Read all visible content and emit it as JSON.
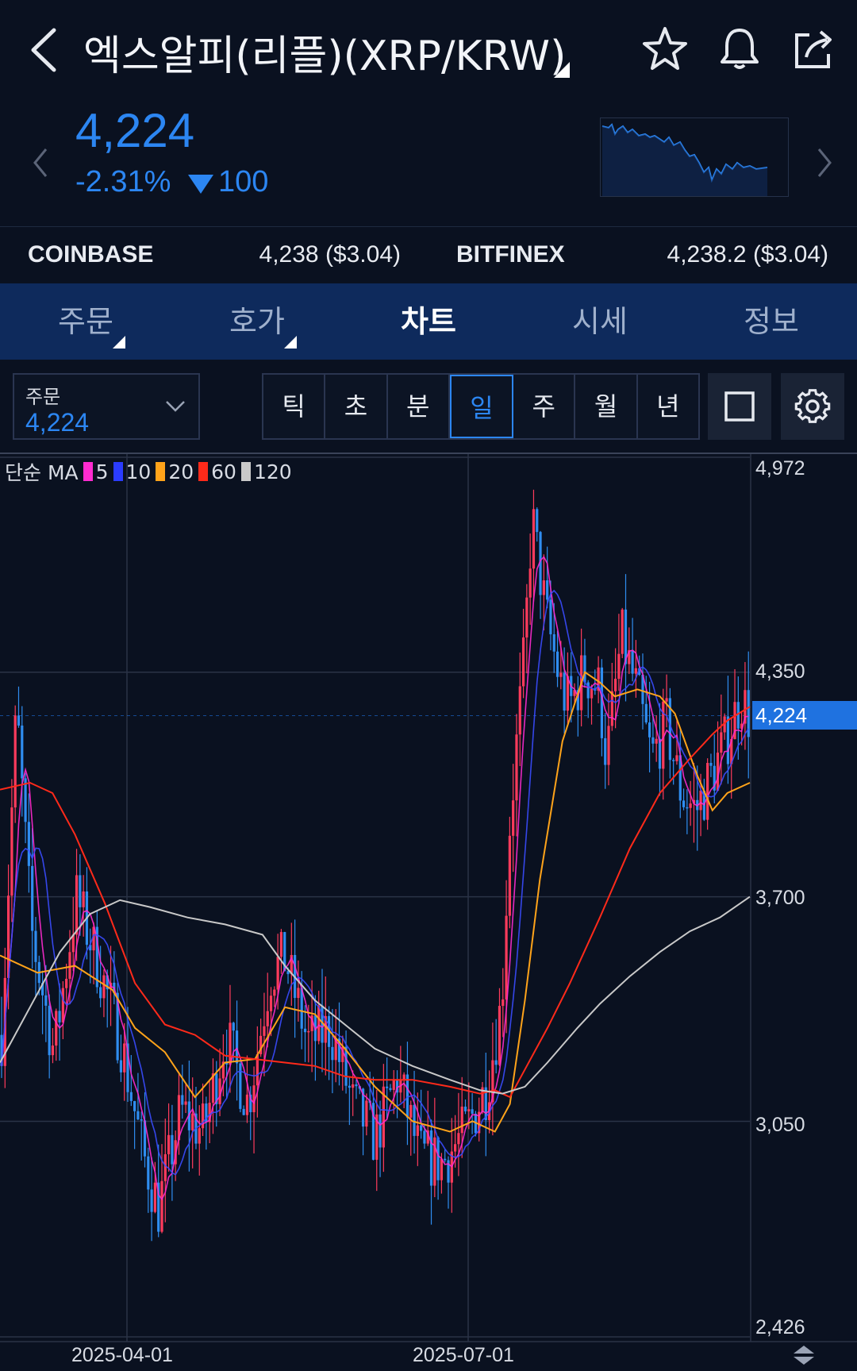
{
  "header": {
    "title": "엑스알피(리플)(XRP/KRW)"
  },
  "summary": {
    "price": "4,224",
    "change_pct": "-2.31%",
    "change_abs": "100",
    "color_down": "#2c86f2"
  },
  "exchanges": [
    {
      "name": "COINBASE",
      "value": "4,238 ($3.04)"
    },
    {
      "name": "BITFINEX",
      "value": "4,238.2 ($3.04)"
    }
  ],
  "tabs": [
    {
      "label": "주문",
      "has_caret": true
    },
    {
      "label": "호가",
      "has_caret": true
    },
    {
      "label": "차트",
      "active": true
    },
    {
      "label": "시세"
    },
    {
      "label": "정보"
    }
  ],
  "toolbar": {
    "order_label": "주문",
    "order_value": "4,224",
    "periods": [
      "틱",
      "초",
      "분",
      "일",
      "주",
      "월",
      "년"
    ],
    "active_period": "일"
  },
  "chart_data": {
    "type": "candlestick",
    "ma_label": "단순 MA",
    "ma_series": [
      {
        "name": "5",
        "color": "#ff2bd0"
      },
      {
        "name": "10",
        "color": "#2b3cff"
      },
      {
        "name": "20",
        "color": "#ffa31a"
      },
      {
        "name": "60",
        "color": "#ff2a1a"
      },
      {
        "name": "120",
        "color": "#c9c9c9"
      }
    ],
    "y_ticks": [
      "4,972",
      "4,350",
      "3,700",
      "3,050",
      "2,426"
    ],
    "y_tick_values": [
      4972,
      4350,
      3700,
      3050,
      2426
    ],
    "ylim": [
      2426,
      4972
    ],
    "current_price_label": "4,224",
    "current_price": 4224,
    "x_ticks": [
      "2025-04-01",
      "2025-07-01"
    ],
    "ma_curves": {
      "ma20": [
        [
          0,
          3530
        ],
        [
          0.05,
          3480
        ],
        [
          0.1,
          3500
        ],
        [
          0.15,
          3430
        ],
        [
          0.18,
          3320
        ],
        [
          0.22,
          3250
        ],
        [
          0.26,
          3120
        ],
        [
          0.3,
          3220
        ],
        [
          0.34,
          3230
        ],
        [
          0.38,
          3380
        ],
        [
          0.42,
          3360
        ],
        [
          0.46,
          3260
        ],
        [
          0.5,
          3150
        ],
        [
          0.55,
          3050
        ],
        [
          0.6,
          3020
        ],
        [
          0.63,
          3050
        ],
        [
          0.66,
          3020
        ],
        [
          0.68,
          3100
        ],
        [
          0.7,
          3400
        ],
        [
          0.72,
          3750
        ],
        [
          0.75,
          4150
        ],
        [
          0.78,
          4350
        ],
        [
          0.8,
          4320
        ],
        [
          0.82,
          4280
        ],
        [
          0.85,
          4300
        ],
        [
          0.88,
          4280
        ],
        [
          0.9,
          4230
        ],
        [
          0.93,
          4050
        ],
        [
          0.95,
          3950
        ],
        [
          0.97,
          4000
        ],
        [
          1.0,
          4030
        ]
      ],
      "ma60": [
        [
          0,
          4010
        ],
        [
          0.04,
          4030
        ],
        [
          0.07,
          4000
        ],
        [
          0.1,
          3880
        ],
        [
          0.14,
          3680
        ],
        [
          0.18,
          3450
        ],
        [
          0.22,
          3330
        ],
        [
          0.26,
          3300
        ],
        [
          0.3,
          3240
        ],
        [
          0.34,
          3230
        ],
        [
          0.38,
          3220
        ],
        [
          0.42,
          3210
        ],
        [
          0.46,
          3180
        ],
        [
          0.5,
          3170
        ],
        [
          0.55,
          3170
        ],
        [
          0.6,
          3150
        ],
        [
          0.64,
          3130
        ],
        [
          0.66,
          3140
        ],
        [
          0.68,
          3120
        ],
        [
          0.7,
          3200
        ],
        [
          0.73,
          3320
        ],
        [
          0.76,
          3450
        ],
        [
          0.8,
          3640
        ],
        [
          0.84,
          3840
        ],
        [
          0.88,
          4000
        ],
        [
          0.92,
          4100
        ],
        [
          0.95,
          4170
        ],
        [
          0.97,
          4210
        ],
        [
          1.0,
          4250
        ]
      ],
      "ma120": [
        [
          0,
          3220
        ],
        [
          0.04,
          3380
        ],
        [
          0.08,
          3540
        ],
        [
          0.12,
          3650
        ],
        [
          0.16,
          3690
        ],
        [
          0.2,
          3670
        ],
        [
          0.25,
          3640
        ],
        [
          0.3,
          3620
        ],
        [
          0.35,
          3590
        ],
        [
          0.38,
          3500
        ],
        [
          0.42,
          3400
        ],
        [
          0.46,
          3330
        ],
        [
          0.5,
          3260
        ],
        [
          0.55,
          3210
        ],
        [
          0.6,
          3170
        ],
        [
          0.64,
          3140
        ],
        [
          0.67,
          3130
        ],
        [
          0.7,
          3150
        ],
        [
          0.73,
          3220
        ],
        [
          0.77,
          3320
        ],
        [
          0.8,
          3390
        ],
        [
          0.84,
          3470
        ],
        [
          0.88,
          3540
        ],
        [
          0.92,
          3600
        ],
        [
          0.96,
          3640
        ],
        [
          1.0,
          3700
        ]
      ]
    }
  }
}
